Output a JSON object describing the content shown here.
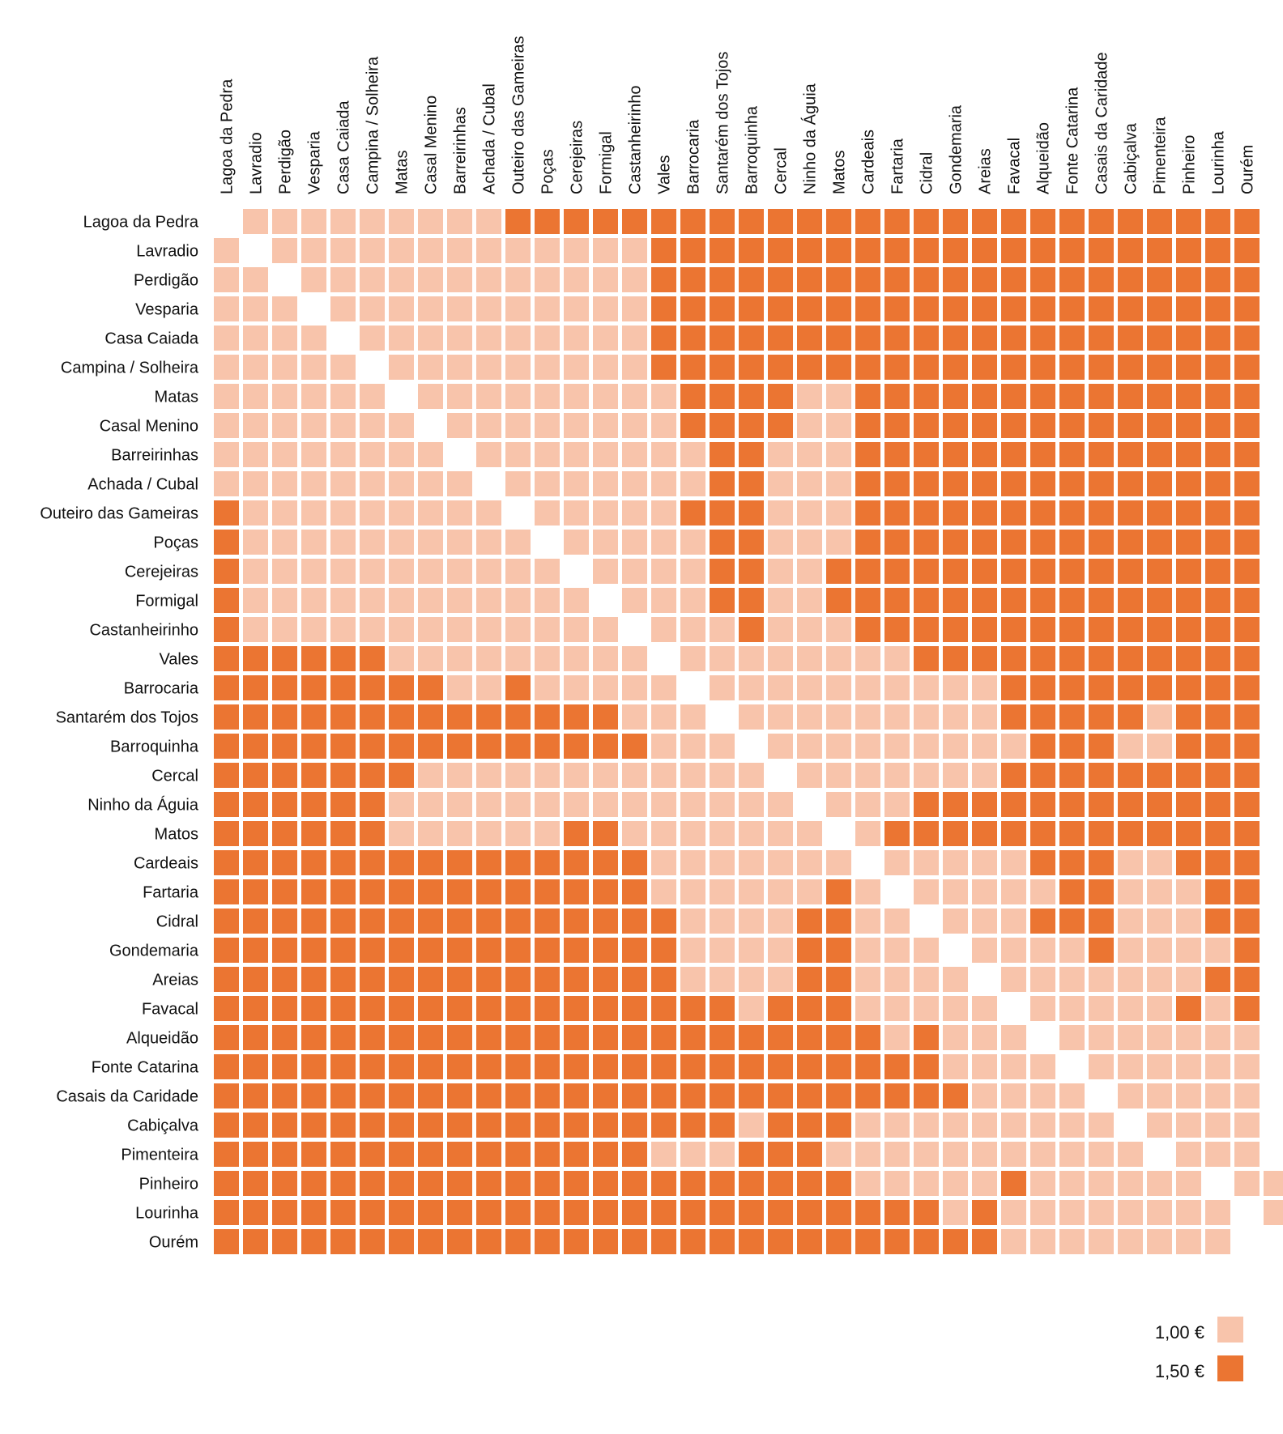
{
  "chart_data": {
    "type": "heatmap",
    "title": "",
    "xlabel": "",
    "ylabel": "",
    "categories": [
      "Lagoa da Pedra",
      "Lavradio",
      "Perdigão",
      "Vesparia",
      "Casa Caiada",
      "Campina / Solheira",
      "Matas",
      "Casal Menino",
      "Barreirinhas",
      "Achada / Cubal",
      "Outeiro das Gameiras",
      "Poças",
      "Cerejeiras",
      "Formigal",
      "Castanheirinho",
      "Vales",
      "Barrocaria",
      "Santarém dos Tojos",
      "Barroquinha",
      "Cercal",
      "Ninho da Águia",
      "Matos",
      "Cardeais",
      "Fartaria",
      "Cidral",
      "Gondemaria",
      "Areias",
      "Favacal",
      "Alqueidão",
      "Fonte Catarina",
      "Casais da Caridade",
      "Cabiçalva",
      "Pimenteira",
      "Pinheiro",
      "Lourinha",
      "Ourém"
    ],
    "matrix": [
      "-LLLLLLLLLHHHHHHHHHHHHHHHHHHHHHHHHHH",
      "L-LLLLLLLLLLLLLHHHHHHHHHHHHHHHHHHHHH",
      "LL-LLLLLLLLLLLLHHHHHHHHHHHHHHHHHHHHH",
      "LLL-LLLLLLLLLLLHHHHHHHHHHHHHHHHHHHHH",
      "LLLL-LLLLLLLLLLHHHHHHHHHHHHHHHHHHHHH",
      "LLLLL-LLLLLLLLLHHHHHHHHHHHHHHHHHHHHH",
      "LLLLLL-LLLLLLLLLHHHHLLHHHHHHHHHHHHHH",
      "LLLLLLL-LLLLLLLLHHHHLLHHHHHHHHHHHHHH",
      "LLLLLLLL-LLLLLLLLHHLLLHHHHHHHHHHHHHH",
      "LLLLLLLLL-LLLLLLLHHLLLHHHHHHHHHHHHHH",
      "HLLLLLLLLL-LLLLLHHHLLLHHHHHHHHHHHHHH",
      "HLLLLLLLLLL-LLLLLHHLLLHHHHHHHHHHHHHH",
      "HLLLLLLLLLLL-LLLLHHLLHHHHHHHHHHHHHHH",
      "HLLLLLLLLLLLL-LLLHHLLHHHHHHHHHHHHHHH",
      "HLLLLLLLLLLLLL-LLLHLLLHHHHHHHHHHHHHH",
      "HHHHHHLLLLLLLLL-LLLLLLLLHHHHHHHHHHHH",
      "HHHHHHHHLLHLLLLL-LLLLLLLLLLHHHHHHHHH",
      "HHHHHHHHHHHHHHLLL-LLLLLLLLLHHHHHLHHH",
      "HHHHHHHHHHHHHHHLLL-LLLLLLLLLHHHLLHHH",
      "HHHHHHHLLLLLLLLLLLL-LLLLLLLHHHHHHHHH",
      "HHHHHHLLLLLLLLLLLLLL-LLLHHHHHHHHHHHH",
      "HHHHHHLLLLLLHHLLLLLLL-LHHHHHHHHHHHHH",
      "HHHHHHHHHHHHHHHLLLLLLL-LLLLLHHHLLHHH",
      "HHHHHHHHHHHHHHHLLLLLLHL-LLLLLHHLLLHH",
      "HHHHHHHHHHHHHHHHLLLLHHLL-LLLHHHLLLHH",
      "HHHHHHHHHHHHHHHHLLLLHHLLL-LLLLHLLLLH",
      "HHHHHHHHHHHHHHHHLLLLHHLLLL-LLLLLLLHH",
      "HHHHHHHHHHHHHHHHHHLHHHLLLLL-LLLLLHLH",
      "HHHHHHHHHHHHHHHHHHHHHHHLHLLL-LLLLLLL",
      "HHHHHHHHHHHHHHHHHHHHHHHHHLLLL-LLLLLL",
      "HHHHHHHHHHHHHHHHHHHHHHHHHHLLLL-LLLLL",
      "HHHHHHHHHHHHHHHHHHLHHHLLLLLLLLL-LLLL",
      "HHHHHHHHHHHHHHHLLLHHHLLLLLLLLLLL-LLL",
      "HHHHHHHHHHHHHHHHHHHHHHLLLLLHLLLLLL-LL",
      "HHHHHHHHHHHHHHHHHHHHHHHHHLHLLLLLLLL-L",
      "HHHHHHHHHHHHHHHHHHHHHHHHHHHLLLLLLLL-"
    ],
    "legend": [
      {
        "key": "L",
        "label": "1,00 €",
        "color": "#F8C4AB"
      },
      {
        "key": "H",
        "label": "1,50 €",
        "color": "#EB7532"
      }
    ],
    "legend_position": "bottom-right",
    "grid": false
  }
}
